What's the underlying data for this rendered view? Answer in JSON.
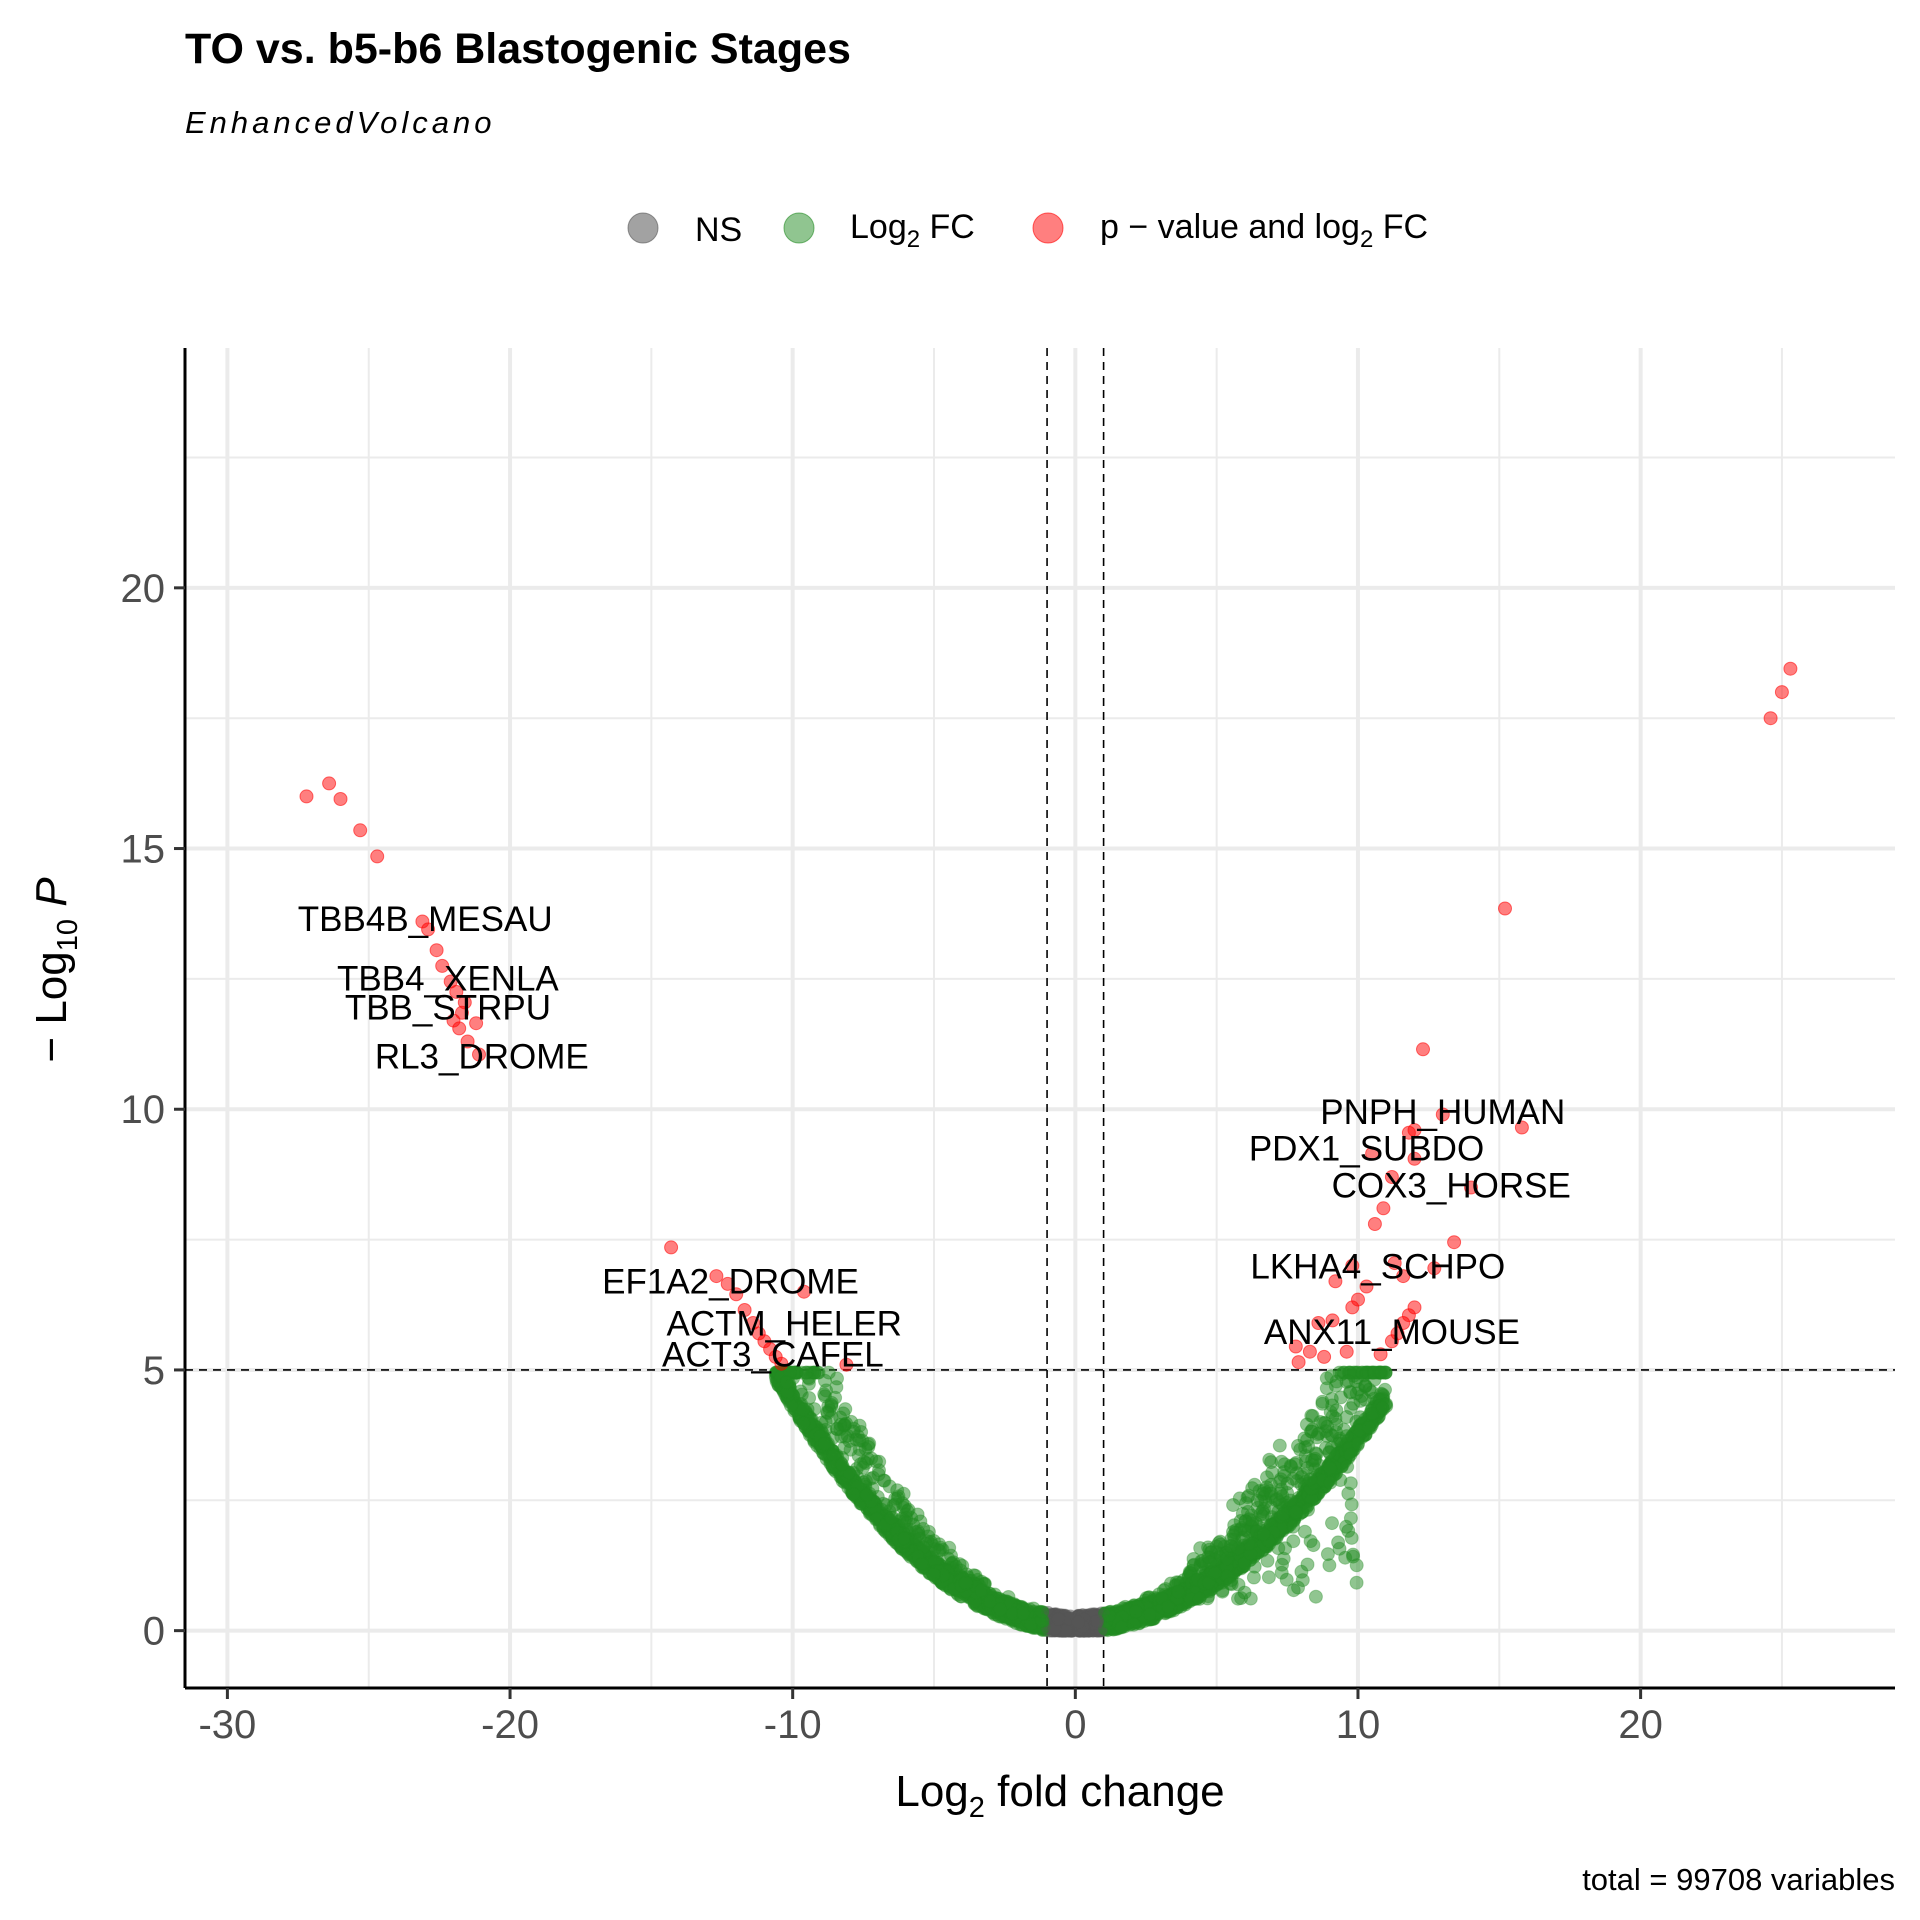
{
  "chart_data": {
    "type": "scatter",
    "title": "TO vs. b5-b6 Blastogenic Stages",
    "subtitle": "EnhancedVolcano",
    "xlabel": "Log2 fold change",
    "ylabel": "-Log10 P",
    "caption": "total = 99708 variables",
    "xlim": [
      -31.5,
      29
    ],
    "ylim": [
      -1.1,
      24.6
    ],
    "xticks": [
      -30,
      -20,
      -10,
      0,
      10,
      20
    ],
    "xtick_labels": [
      "-30",
      "-20",
      "-10",
      "0",
      "10",
      "20"
    ],
    "yticks": [
      0,
      5,
      10,
      15,
      20
    ],
    "ytick_labels": [
      "0",
      "5",
      "10",
      "15",
      "20"
    ],
    "fc_cutoff": 1,
    "p_cutoff_neglog10": 5,
    "grid": true,
    "legend_position": "top",
    "legend": [
      {
        "key": "ns",
        "label": "NS",
        "color": "#555555"
      },
      {
        "key": "fc",
        "label": "Log2 FC",
        "color": "#228B22"
      },
      {
        "key": "both",
        "label": "p - value and log2 FC",
        "color": "#FF0000"
      }
    ],
    "series": [
      {
        "name": "p - value and log2 FC",
        "color": "#FF0000",
        "points": [
          [
            -27.2,
            16.0
          ],
          [
            -26.4,
            16.25
          ],
          [
            -26.0,
            15.95
          ],
          [
            -25.3,
            15.35
          ],
          [
            -24.7,
            14.85
          ],
          [
            -23.1,
            13.6
          ],
          [
            -22.9,
            13.45
          ],
          [
            -22.6,
            13.05
          ],
          [
            -22.4,
            12.75
          ],
          [
            -22.1,
            12.45
          ],
          [
            -21.9,
            12.25
          ],
          [
            -21.6,
            12.05
          ],
          [
            -21.2,
            11.65
          ],
          [
            -21.8,
            11.55
          ],
          [
            -22.0,
            11.7
          ],
          [
            -21.5,
            11.3
          ],
          [
            -21.1,
            11.05
          ],
          [
            -21.7,
            11.85
          ],
          [
            -14.3,
            7.35
          ],
          [
            -12.7,
            6.8
          ],
          [
            -12.3,
            6.65
          ],
          [
            -12.0,
            6.45
          ],
          [
            -11.7,
            6.15
          ],
          [
            -11.4,
            5.9
          ],
          [
            -11.2,
            5.7
          ],
          [
            -11.0,
            5.55
          ],
          [
            -10.8,
            5.4
          ],
          [
            -10.6,
            5.25
          ],
          [
            -10.4,
            5.12
          ],
          [
            -9.6,
            6.5
          ],
          [
            -8.1,
            5.1
          ],
          [
            24.6,
            17.5
          ],
          [
            25.0,
            18.0
          ],
          [
            25.3,
            18.45
          ],
          [
            15.2,
            13.85
          ],
          [
            12.3,
            11.15
          ],
          [
            13.0,
            9.9
          ],
          [
            15.8,
            9.65
          ],
          [
            11.8,
            9.55
          ],
          [
            12.0,
            9.6
          ],
          [
            10.5,
            9.15
          ],
          [
            12.0,
            9.05
          ],
          [
            11.2,
            8.7
          ],
          [
            14.0,
            8.5
          ],
          [
            10.9,
            8.1
          ],
          [
            10.6,
            7.8
          ],
          [
            13.4,
            7.45
          ],
          [
            11.3,
            7.05
          ],
          [
            12.7,
            6.95
          ],
          [
            9.8,
            7.0
          ],
          [
            11.6,
            6.8
          ],
          [
            10.3,
            6.6
          ],
          [
            9.2,
            6.7
          ],
          [
            10.0,
            6.35
          ],
          [
            9.8,
            6.2
          ],
          [
            12.0,
            6.2
          ],
          [
            11.8,
            6.05
          ],
          [
            11.6,
            5.9
          ],
          [
            9.1,
            5.95
          ],
          [
            8.6,
            5.9
          ],
          [
            11.4,
            5.7
          ],
          [
            11.2,
            5.55
          ],
          [
            7.8,
            5.45
          ],
          [
            8.3,
            5.35
          ],
          [
            9.6,
            5.35
          ],
          [
            8.8,
            5.25
          ],
          [
            10.8,
            5.3
          ],
          [
            7.9,
            5.15
          ]
        ]
      }
    ],
    "labels": [
      {
        "text": "TBB4B_MESAU",
        "x": -23.0,
        "y": 13.42
      },
      {
        "text": "TBB4_XENLA",
        "x": -22.2,
        "y": 12.28
      },
      {
        "text": "TBB_STRPU",
        "x": -22.2,
        "y": 11.72
      },
      {
        "text": "RL3_DROME",
        "x": -21.0,
        "y": 10.78
      },
      {
        "text": "EF1A2_DROME",
        "x": -12.2,
        "y": 6.47
      },
      {
        "text": "ACTM_HELER",
        "x": -10.3,
        "y": 5.66
      },
      {
        "text": "ACT3_CAFEL",
        "x": -10.7,
        "y": 5.07
      },
      {
        "text": "PNPH_HUMAN",
        "x": 13.0,
        "y": 9.72
      },
      {
        "text": "PDX1_SUBDO",
        "x": 10.3,
        "y": 9.02
      },
      {
        "text": "COX3_HORSE",
        "x": 13.3,
        "y": 8.31
      },
      {
        "text": "LKHA4_SCHPO",
        "x": 10.7,
        "y": 6.75
      },
      {
        "text": "ANX11_MOUSE",
        "x": 11.2,
        "y": 5.5
      }
    ]
  }
}
